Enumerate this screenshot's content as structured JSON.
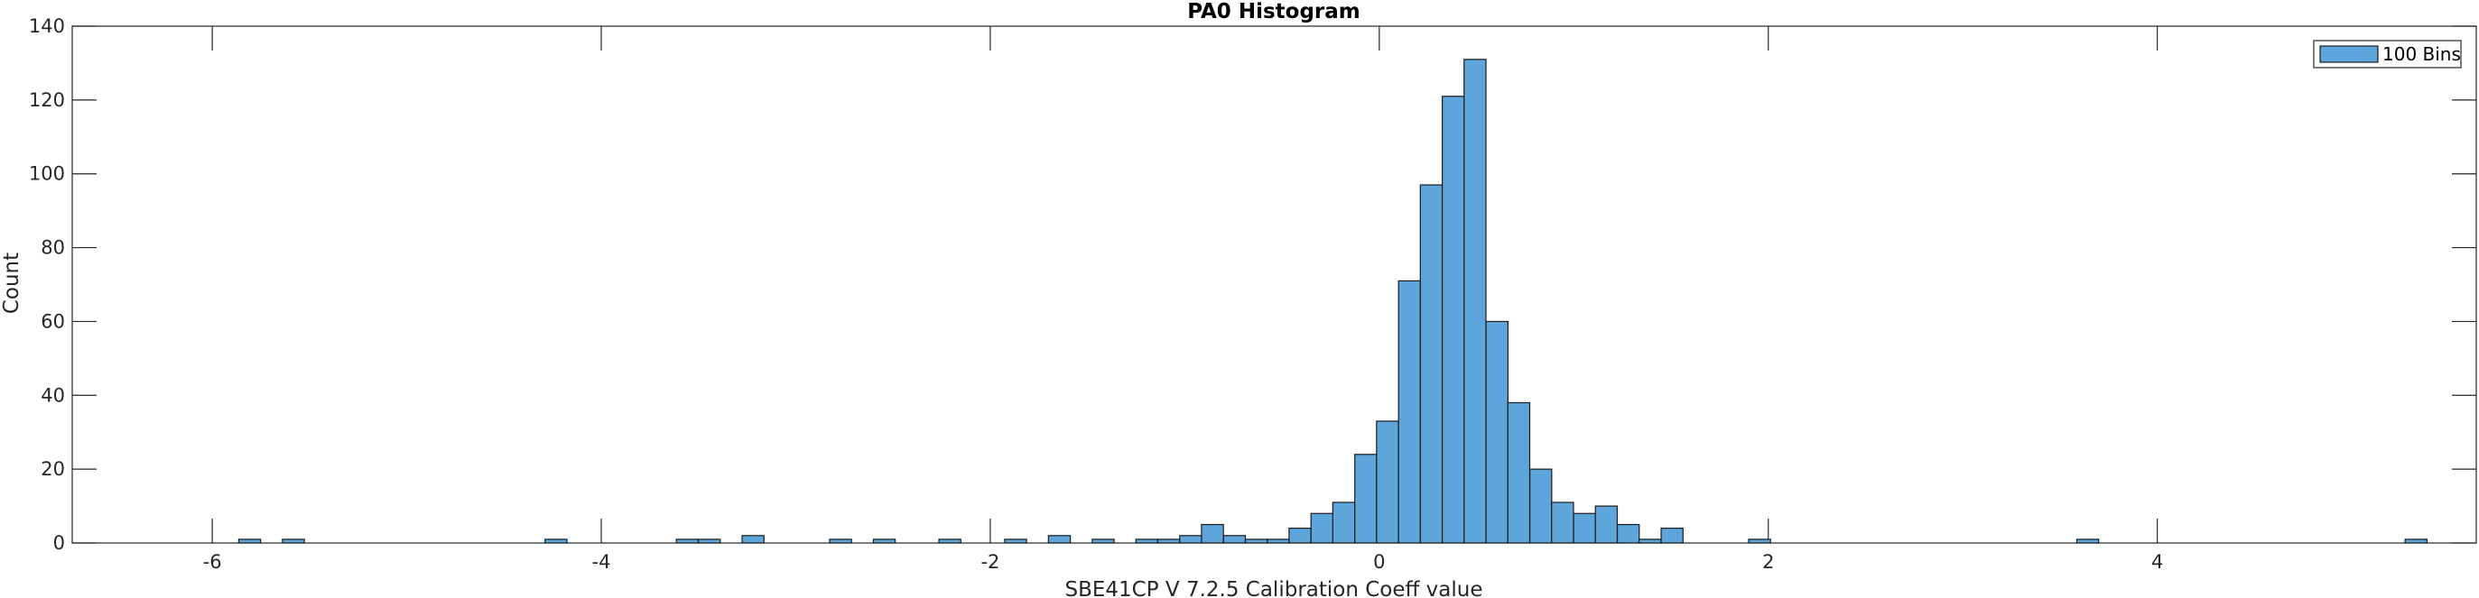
{
  "chart_data": {
    "type": "bar",
    "title": "PA0 Histogram",
    "xlabel": "SBE41CP V 7.2.5 Calibration Coeff value",
    "ylabel": "Count",
    "xlim": [
      -6.72,
      5.64
    ],
    "ylim": [
      0,
      140
    ],
    "xticks": [
      -6,
      -4,
      -2,
      0,
      2,
      4
    ],
    "xtick_labels": [
      "-6",
      "-4",
      "-2",
      "0",
      "2",
      "4"
    ],
    "yticks": [
      0,
      20,
      40,
      60,
      80,
      100,
      120,
      140
    ],
    "ytick_labels": [
      "0",
      "20",
      "40",
      "60",
      "80",
      "100",
      "120",
      "140"
    ],
    "legend": {
      "label": "100 Bins",
      "location": "top-right"
    },
    "bin_width": 0.1125,
    "bins": [
      {
        "x0": -5.864,
        "count": 1
      },
      {
        "x0": -5.639,
        "count": 1
      },
      {
        "x0": -4.289,
        "count": 1
      },
      {
        "x0": -3.614,
        "count": 1
      },
      {
        "x0": -3.501,
        "count": 1
      },
      {
        "x0": -3.276,
        "count": 2
      },
      {
        "x0": -2.826,
        "count": 1
      },
      {
        "x0": -2.601,
        "count": 1
      },
      {
        "x0": -2.264,
        "count": 1
      },
      {
        "x0": -1.926,
        "count": 1
      },
      {
        "x0": -1.701,
        "count": 2
      },
      {
        "x0": -1.476,
        "count": 1
      },
      {
        "x0": -1.251,
        "count": 1
      },
      {
        "x0": -1.139,
        "count": 1
      },
      {
        "x0": -1.026,
        "count": 2
      },
      {
        "x0": -0.914,
        "count": 5
      },
      {
        "x0": -0.801,
        "count": 2
      },
      {
        "x0": -0.689,
        "count": 1
      },
      {
        "x0": -0.576,
        "count": 1
      },
      {
        "x0": -0.464,
        "count": 4
      },
      {
        "x0": -0.351,
        "count": 8
      },
      {
        "x0": -0.239,
        "count": 11
      },
      {
        "x0": -0.126,
        "count": 24
      },
      {
        "x0": -0.014,
        "count": 33
      },
      {
        "x0": 0.099,
        "count": 71
      },
      {
        "x0": 0.211,
        "count": 97
      },
      {
        "x0": 0.324,
        "count": 121
      },
      {
        "x0": 0.436,
        "count": 131
      },
      {
        "x0": 0.549,
        "count": 60
      },
      {
        "x0": 0.661,
        "count": 38
      },
      {
        "x0": 0.774,
        "count": 20
      },
      {
        "x0": 0.886,
        "count": 11
      },
      {
        "x0": 0.999,
        "count": 8
      },
      {
        "x0": 1.111,
        "count": 10
      },
      {
        "x0": 1.224,
        "count": 5
      },
      {
        "x0": 1.336,
        "count": 1
      },
      {
        "x0": 1.449,
        "count": 4
      },
      {
        "x0": 1.899,
        "count": 1
      },
      {
        "x0": 3.586,
        "count": 1
      },
      {
        "x0": 5.274,
        "count": 1
      }
    ]
  },
  "colors": {
    "bar_fill": "#5DA5DA",
    "bar_edge": "#1a1a1a",
    "axis": "#262626"
  }
}
